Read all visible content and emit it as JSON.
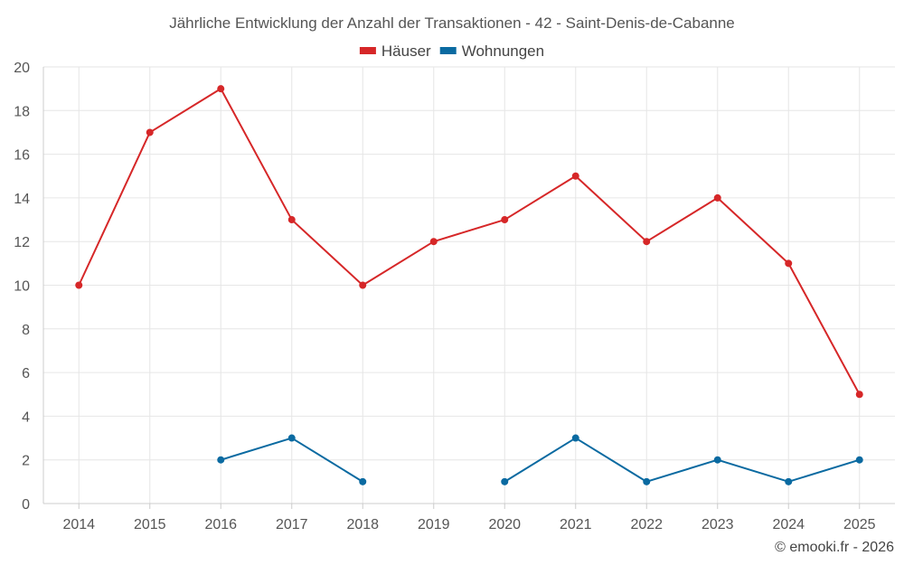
{
  "chart_data": {
    "type": "line",
    "title": "Jährliche Entwicklung der Anzahl der Transaktionen - 42 - Saint-Denis-de-Cabanne",
    "xlabel": "",
    "ylabel": "",
    "categories": [
      "2014",
      "2015",
      "2016",
      "2017",
      "2018",
      "2019",
      "2020",
      "2021",
      "2022",
      "2023",
      "2024",
      "2025"
    ],
    "ylim": [
      0,
      20
    ],
    "yticks": [
      0,
      2,
      4,
      6,
      8,
      10,
      12,
      14,
      16,
      18,
      20
    ],
    "grid": true,
    "legend_position": "top-center",
    "series": [
      {
        "name": "Häuser",
        "color": "#d62728",
        "values": [
          10,
          17,
          19,
          13,
          10,
          12,
          13,
          15,
          12,
          14,
          11,
          5
        ]
      },
      {
        "name": "Wohnungen",
        "color": "#0a6aa1",
        "values": [
          null,
          null,
          2,
          3,
          1,
          null,
          1,
          3,
          1,
          2,
          1,
          2
        ]
      }
    ]
  },
  "credit": "© emooki.fr - 2026"
}
